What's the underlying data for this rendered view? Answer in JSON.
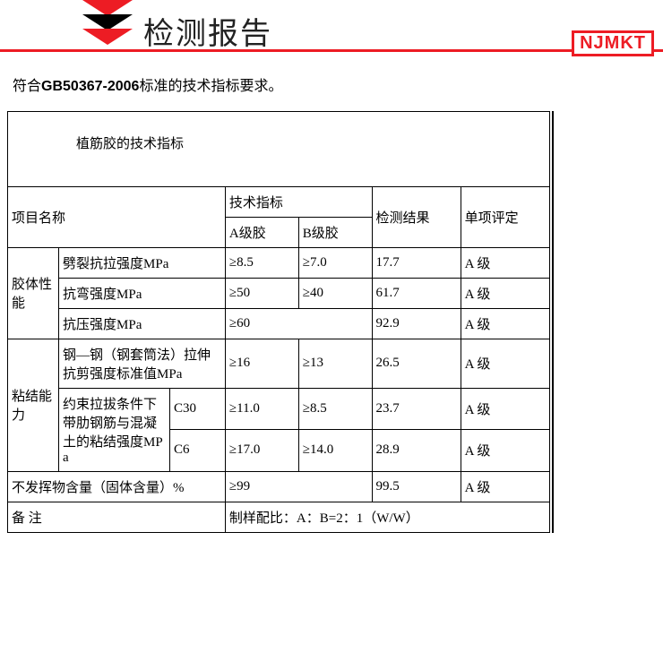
{
  "header": {
    "title": "检测报告",
    "logo": "NJMKT"
  },
  "intro_prefix": "符合",
  "intro_code": "GB50367-2006",
  "intro_suffix": "标准的技术指标要求。",
  "table": {
    "caption": "植筋胶的技术指标",
    "head": {
      "item_name": "项目名称",
      "tech_index": "技术指标",
      "a_grade": "A级胶",
      "b_grade": "B级胶",
      "result": "检测结果",
      "verdict": "单项评定"
    },
    "group1": {
      "label": "胶体性能",
      "rows": [
        {
          "name": "劈裂抗拉强度MPa",
          "a": "≥8.5",
          "b": "≥7.0",
          "r": "17.7",
          "v": "A 级"
        },
        {
          "name": "抗弯强度MPa",
          "a": "≥50",
          "b": "≥40",
          "r": "61.7",
          "v": "A 级"
        },
        {
          "name": "抗压强度MPa",
          "a": "≥60",
          "b": "",
          "r": "92.9",
          "v": "A 级"
        }
      ]
    },
    "group2": {
      "label": "粘结能力",
      "row0": {
        "name": "钢—钢（钢套筒法）拉伸抗剪强度标准值MPa",
        "a": "≥16",
        "b": "≥13",
        "r": "26.5",
        "v": "A 级"
      },
      "sub_label": "约束拉拔条件下带肋钢筋与混凝土的粘结强度MPa",
      "row1": {
        "c": "C30",
        "a": "≥11.0",
        "b": "≥8.5",
        "r": "23.7",
        "v": "A 级"
      },
      "row2": {
        "c": "C6",
        "a": "≥17.0",
        "b": "≥14.0",
        "r": "28.9",
        "v": "A 级"
      }
    },
    "row_volatile": {
      "name": "不发挥物含量（固体含量）%",
      "a": "≥99",
      "r": "99.5",
      "v": "A 级"
    },
    "note_label": "备 注",
    "note_value": "制样配比：A：B=2：1（W/W）"
  }
}
